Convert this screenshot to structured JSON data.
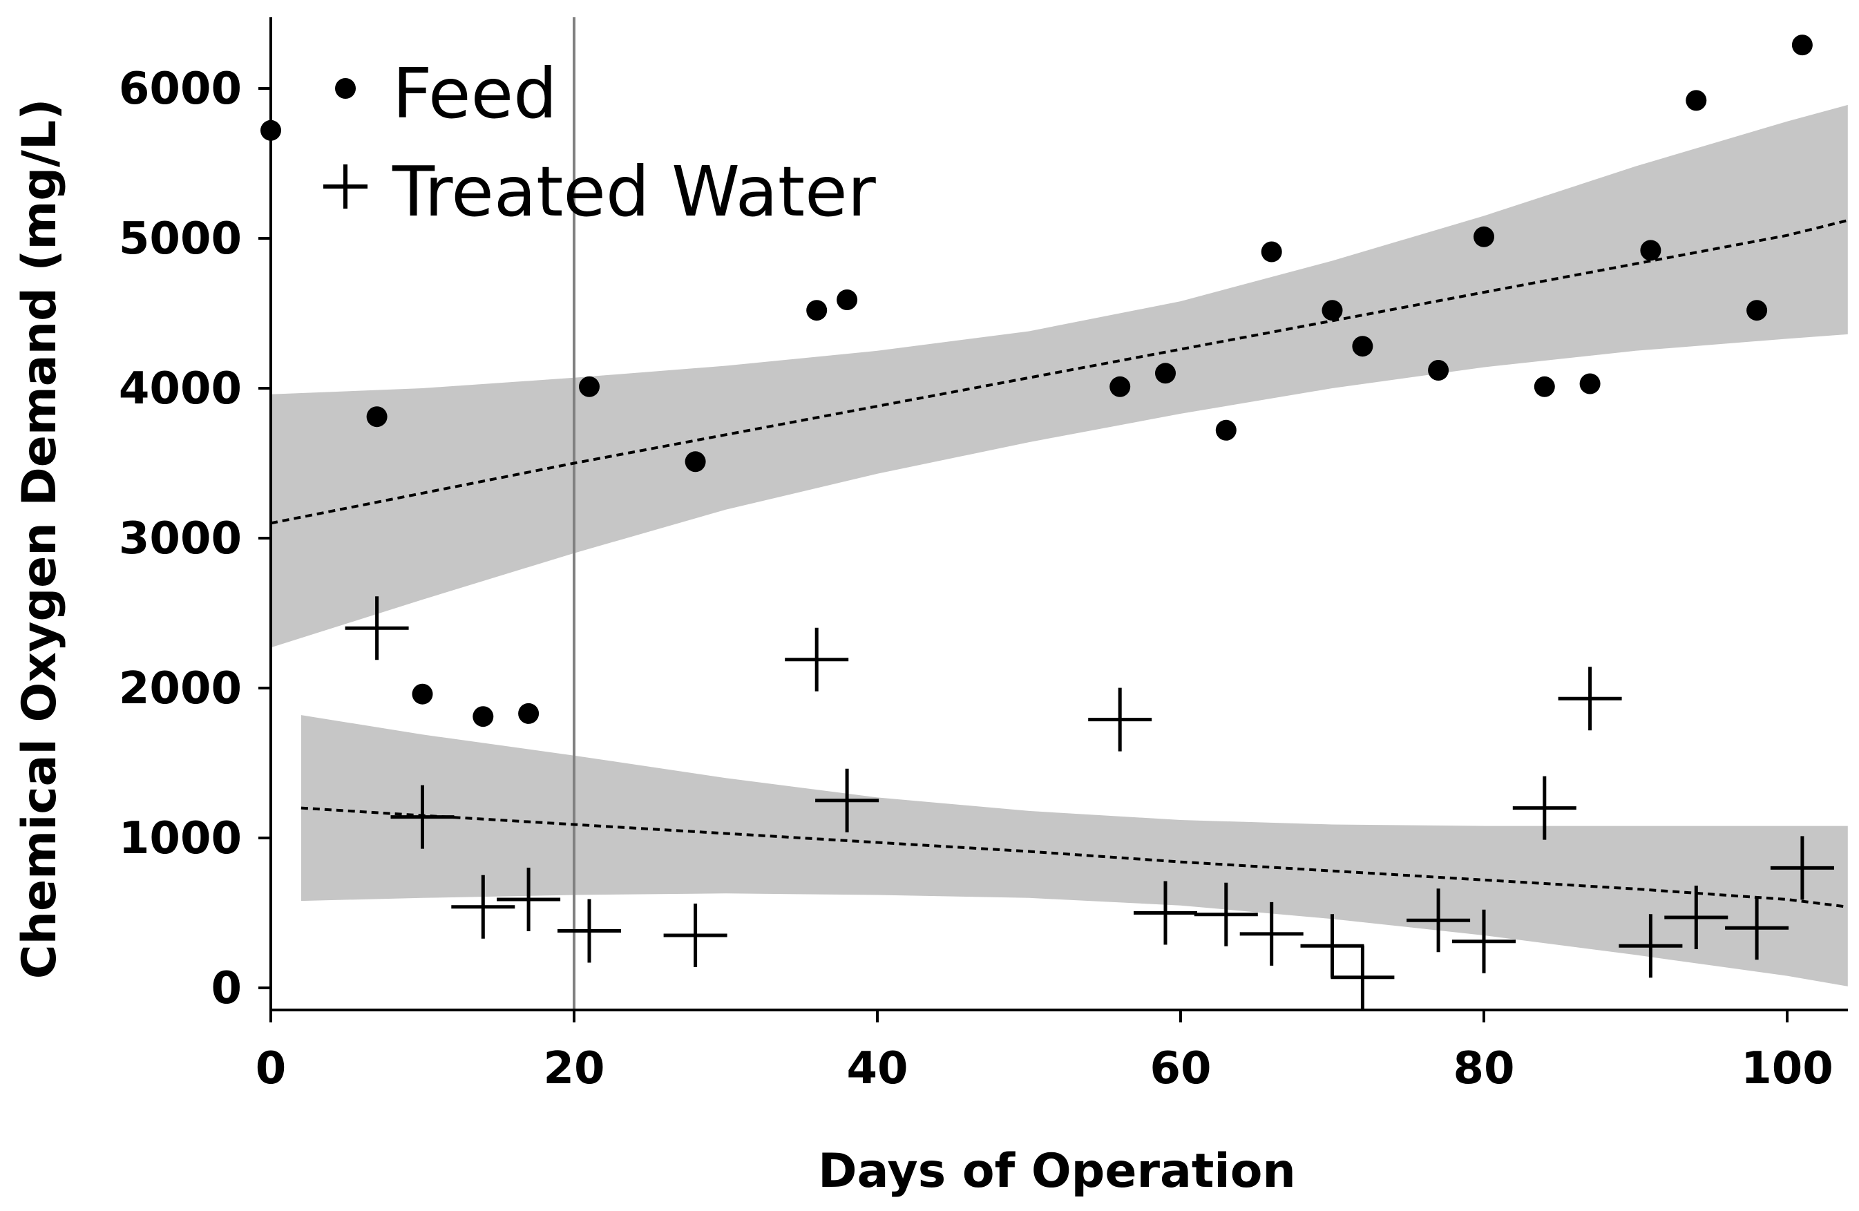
{
  "chart_data": {
    "type": "scatter",
    "title": "",
    "xlabel": "Days of Operation",
    "ylabel": "Chemical Oxygen Demand (mg/L)",
    "xlim": [
      0,
      104
    ],
    "ylim": [
      -150,
      6500
    ],
    "x_ticks": [
      0,
      20,
      40,
      60,
      80,
      100
    ],
    "y_ticks": [
      0,
      1000,
      2000,
      3000,
      4000,
      5000,
      6000
    ],
    "reference_line_x": 20,
    "legend_position": "top-left",
    "series": [
      {
        "name": "Feed",
        "marker": "dot",
        "x": [
          0,
          7,
          10,
          14,
          17,
          21,
          28,
          36,
          38,
          56,
          59,
          63,
          66,
          70,
          72,
          77,
          80,
          84,
          87,
          91,
          94,
          98,
          101
        ],
        "y": [
          5720,
          3810,
          1960,
          1810,
          1830,
          4010,
          3510,
          4520,
          4590,
          4010,
          4100,
          3720,
          4910,
          4520,
          4280,
          4120,
          5010,
          4010,
          4030,
          4920,
          5920,
          4520,
          6290
        ],
        "trend": {
          "x": [
            0,
            10,
            20,
            30,
            40,
            50,
            60,
            70,
            80,
            90,
            100,
            104
          ],
          "y": [
            3100,
            3300,
            3500,
            3690,
            3880,
            4070,
            4260,
            4450,
            4640,
            4830,
            5020,
            5120
          ]
        },
        "band": {
          "x": [
            0,
            10,
            20,
            30,
            40,
            50,
            60,
            70,
            80,
            90,
            100,
            104
          ],
          "upper": [
            3960,
            4000,
            4070,
            4150,
            4250,
            4380,
            4580,
            4850,
            5150,
            5480,
            5780,
            5890
          ],
          "lower": [
            2270,
            2590,
            2900,
            3190,
            3430,
            3640,
            3830,
            4000,
            4140,
            4250,
            4330,
            4360
          ]
        }
      },
      {
        "name": "Treated Water",
        "marker": "plus",
        "x": [
          7,
          10,
          14,
          17,
          21,
          28,
          36,
          38,
          56,
          59,
          63,
          66,
          70,
          72,
          77,
          80,
          84,
          87,
          91,
          94,
          98,
          101
        ],
        "y": [
          2400,
          1140,
          540,
          590,
          380,
          350,
          2190,
          1250,
          1790,
          500,
          490,
          360,
          280,
          70,
          450,
          310,
          1200,
          1930,
          280,
          470,
          400,
          800
        ],
        "trend": {
          "x": [
            2,
            10,
            20,
            30,
            40,
            50,
            60,
            70,
            80,
            90,
            100,
            104
          ],
          "y": [
            1200,
            1150,
            1090,
            1030,
            970,
            910,
            840,
            780,
            720,
            660,
            590,
            540
          ]
        },
        "band": {
          "x": [
            2,
            10,
            20,
            30,
            40,
            50,
            60,
            70,
            80,
            90,
            100,
            104
          ],
          "upper": [
            1820,
            1690,
            1550,
            1400,
            1270,
            1180,
            1120,
            1090,
            1080,
            1080,
            1080,
            1080
          ],
          "lower": [
            580,
            600,
            620,
            630,
            620,
            600,
            550,
            460,
            350,
            220,
            80,
            10
          ]
        }
      }
    ]
  },
  "colors": {
    "band_fill": "#c6c6c6",
    "reference_line": "#808080",
    "ink": "#000000"
  }
}
